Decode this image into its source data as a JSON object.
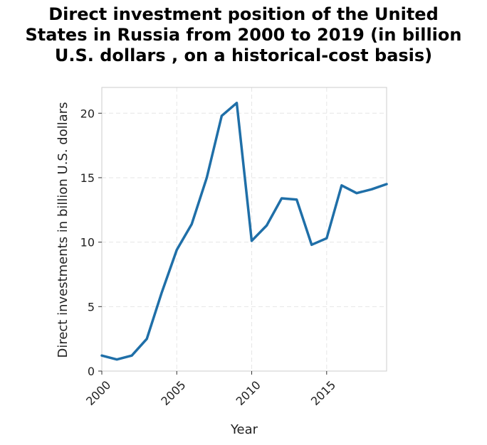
{
  "chart_data": {
    "type": "line",
    "title_lines": [
      "Direct investment position of the United",
      "States in Russia from 2000 to 2019 (in billion",
      "U.S. dollars , on a historical-cost basis)"
    ],
    "xlabel": "Year",
    "ylabel": "Direct investments in billion U.S. dollars",
    "xlim": [
      2000,
      2019
    ],
    "ylim": [
      0,
      22
    ],
    "xticks": [
      2000,
      2005,
      2010,
      2015
    ],
    "yticks": [
      0,
      5,
      10,
      15,
      20
    ],
    "grid": true,
    "color": "#1f6fa8",
    "x": [
      2000,
      2001,
      2002,
      2003,
      2004,
      2005,
      2006,
      2007,
      2008,
      2009,
      2010,
      2011,
      2012,
      2013,
      2014,
      2015,
      2016,
      2017,
      2018,
      2019
    ],
    "y": [
      1.2,
      0.9,
      1.2,
      2.5,
      6.1,
      9.4,
      11.4,
      15.0,
      19.8,
      20.8,
      10.1,
      11.3,
      13.4,
      13.3,
      9.8,
      10.3,
      14.4,
      13.8,
      14.1,
      14.5
    ]
  }
}
